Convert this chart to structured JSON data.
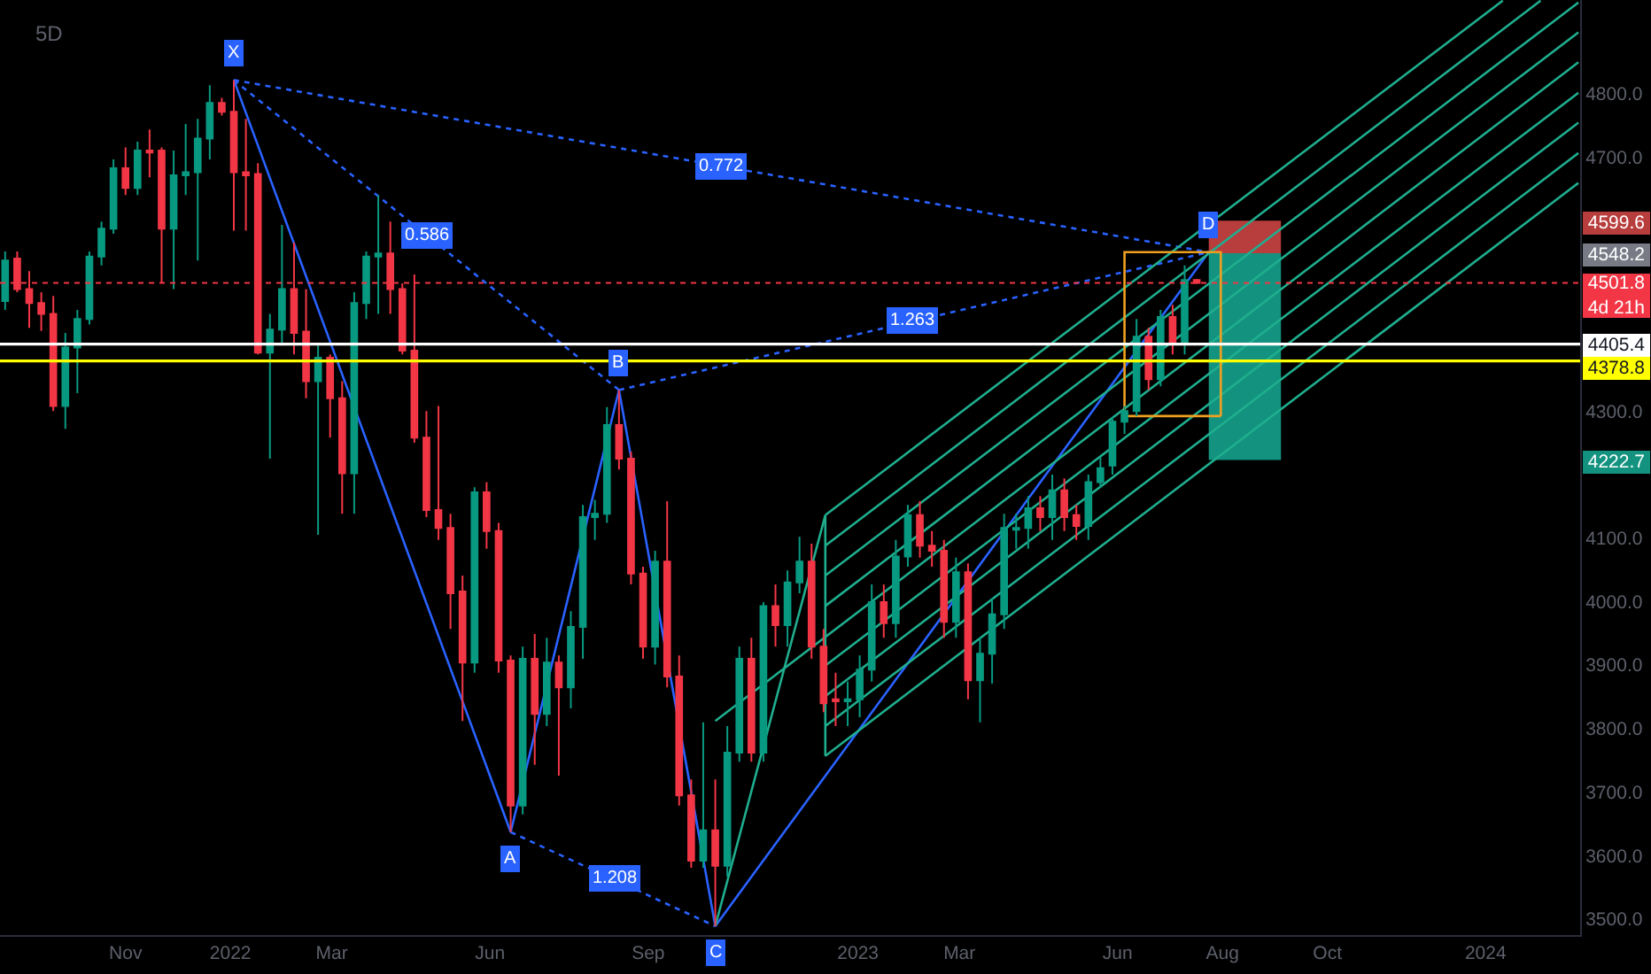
{
  "chart_data": {
    "type": "candlestick",
    "title": "5D",
    "x": [
      "2021-08-23",
      "2021-08-30",
      "2021-09-06",
      "2021-09-13",
      "2021-09-20",
      "2021-09-27",
      "2021-10-04",
      "2021-10-11",
      "2021-10-18",
      "2021-10-25",
      "2021-11-01",
      "2021-11-08",
      "2021-11-15",
      "2021-11-22",
      "2021-11-29",
      "2021-12-06",
      "2021-12-13",
      "2021-12-20",
      "2021-12-27",
      "2022-01-03",
      "2022-01-10",
      "2022-01-17",
      "2022-01-24",
      "2022-01-31",
      "2022-02-07",
      "2022-02-14",
      "2022-02-21",
      "2022-02-28",
      "2022-03-07",
      "2022-03-14",
      "2022-03-21",
      "2022-03-28",
      "2022-04-04",
      "2022-04-11",
      "2022-04-18",
      "2022-04-25",
      "2022-05-02",
      "2022-05-09",
      "2022-05-16",
      "2022-05-23",
      "2022-05-30",
      "2022-06-06",
      "2022-06-13",
      "2022-06-20",
      "2022-06-27",
      "2022-07-04",
      "2022-07-11",
      "2022-07-18",
      "2022-07-25",
      "2022-08-01",
      "2022-08-08",
      "2022-08-15",
      "2022-08-22",
      "2022-08-29",
      "2022-09-05",
      "2022-09-12",
      "2022-09-19",
      "2022-09-26",
      "2022-10-03",
      "2022-10-10",
      "2022-10-17",
      "2022-10-24",
      "2022-10-31",
      "2022-11-07",
      "2022-11-14",
      "2022-11-21",
      "2022-11-28",
      "2022-12-05",
      "2022-12-12",
      "2022-12-19",
      "2022-12-26",
      "2023-01-02",
      "2023-01-09",
      "2023-01-16",
      "2023-01-23",
      "2023-01-30",
      "2023-02-06",
      "2023-02-13",
      "2023-02-20",
      "2023-02-27",
      "2023-03-06",
      "2023-03-13",
      "2023-03-20",
      "2023-03-27",
      "2023-04-03",
      "2023-04-10",
      "2023-04-17",
      "2023-04-24",
      "2023-05-01",
      "2023-05-08",
      "2023-05-15",
      "2023-05-22",
      "2023-05-29",
      "2023-06-05",
      "2023-06-12",
      "2023-06-19",
      "2023-06-26",
      "2023-07-03",
      "2023-07-10",
      "2023-07-17"
    ],
    "ohlc": [
      [
        4473,
        4551,
        4459,
        4537
      ],
      [
        4540,
        4551,
        4487,
        4492
      ],
      [
        4492,
        4520,
        4431,
        4470
      ],
      [
        4470,
        4487,
        4426,
        4453
      ],
      [
        4453,
        4481,
        4300,
        4308
      ],
      [
        4308,
        4423,
        4272,
        4400
      ],
      [
        4400,
        4459,
        4328,
        4445
      ],
      [
        4445,
        4551,
        4436,
        4543
      ],
      [
        4543,
        4598,
        4529,
        4587
      ],
      [
        4587,
        4696,
        4579,
        4682
      ],
      [
        4682,
        4715,
        4640,
        4651
      ],
      [
        4651,
        4724,
        4640,
        4710
      ],
      [
        4710,
        4743,
        4668,
        4707
      ],
      [
        4710,
        4715,
        4501,
        4587
      ],
      [
        4587,
        4710,
        4492,
        4671
      ],
      [
        4671,
        4752,
        4640,
        4676
      ],
      [
        4676,
        4760,
        4537,
        4729
      ],
      [
        4729,
        4813,
        4696,
        4785
      ],
      [
        4785,
        4793,
        4765,
        4771
      ],
      [
        4771,
        4821,
        4584,
        4676
      ],
      [
        4676,
        4760,
        4584,
        4671
      ],
      [
        4673,
        4690,
        4389,
        4392
      ],
      [
        4392,
        4453,
        4225,
        4428
      ],
      [
        4428,
        4593,
        4403,
        4492
      ],
      [
        4492,
        4565,
        4389,
        4423
      ],
      [
        4425,
        4492,
        4320,
        4347
      ],
      [
        4347,
        4403,
        4105,
        4384
      ],
      [
        4384,
        4389,
        4258,
        4320
      ],
      [
        4320,
        4347,
        4138,
        4202
      ],
      [
        4202,
        4487,
        4138,
        4470
      ],
      [
        4470,
        4551,
        4445,
        4543
      ],
      [
        4543,
        4640,
        4453,
        4548
      ],
      [
        4548,
        4598,
        4453,
        4492
      ],
      [
        4492,
        4501,
        4389,
        4395
      ],
      [
        4395,
        4515,
        4250,
        4258
      ],
      [
        4258,
        4300,
        4133,
        4144
      ],
      [
        4144,
        4308,
        4097,
        4116
      ],
      [
        4116,
        4138,
        3957,
        4013
      ],
      [
        4016,
        4041,
        3812,
        3904
      ],
      [
        3904,
        4180,
        3888,
        4172
      ],
      [
        4172,
        4188,
        4083,
        4111
      ],
      [
        4111,
        4124,
        3888,
        3907
      ],
      [
        3907,
        3915,
        3637,
        3679
      ],
      [
        3679,
        3929,
        3665,
        3910
      ],
      [
        3910,
        3949,
        3743,
        3823
      ],
      [
        3823,
        3943,
        3804,
        3904
      ],
      [
        3904,
        3915,
        3726,
        3865
      ],
      [
        3865,
        3985,
        3832,
        3960
      ],
      [
        3960,
        4152,
        3910,
        4133
      ],
      [
        4133,
        4160,
        4097,
        4138
      ],
      [
        4138,
        4306,
        4124,
        4278
      ],
      [
        4278,
        4333,
        4208,
        4225
      ],
      [
        4225,
        4236,
        4027,
        4044
      ],
      [
        4044,
        4055,
        3910,
        3929
      ],
      [
        3929,
        4080,
        3901,
        4063
      ],
      [
        4063,
        4158,
        3865,
        3882
      ],
      [
        3882,
        3915,
        3679,
        3695
      ],
      [
        3695,
        3720,
        3581,
        3592
      ],
      [
        3592,
        3810,
        3581,
        3640
      ],
      [
        3640,
        3720,
        3489,
        3584
      ],
      [
        3584,
        3804,
        3567,
        3762
      ],
      [
        3762,
        3929,
        3748,
        3910
      ],
      [
        3910,
        3943,
        3748,
        3762
      ],
      [
        3762,
        3999,
        3748,
        3993
      ],
      [
        3993,
        4027,
        3929,
        3963
      ],
      [
        3963,
        4049,
        3929,
        4030
      ],
      [
        4030,
        4102,
        4013,
        4063
      ],
      [
        4063,
        4091,
        3910,
        3929
      ],
      [
        3929,
        3957,
        3826,
        3840
      ],
      [
        3846,
        3888,
        3804,
        3843
      ],
      [
        3843,
        3874,
        3804,
        3846
      ],
      [
        3846,
        3915,
        3818,
        3893
      ],
      [
        3893,
        4027,
        3874,
        3999
      ],
      [
        3999,
        4027,
        3943,
        3966
      ],
      [
        3966,
        4097,
        3943,
        4071
      ],
      [
        4071,
        4152,
        4055,
        4136
      ],
      [
        4136,
        4158,
        4069,
        4088
      ],
      [
        4088,
        4111,
        4055,
        4080
      ],
      [
        4080,
        4097,
        3943,
        3968
      ],
      [
        3968,
        4069,
        3943,
        4046
      ],
      [
        4046,
        4060,
        3846,
        3876
      ],
      [
        3876,
        3943,
        3810,
        3918
      ],
      [
        3918,
        4005,
        3871,
        3980
      ],
      [
        3980,
        4138,
        3957,
        4116
      ],
      [
        4113,
        4138,
        4083,
        4116
      ],
      [
        4116,
        4166,
        4083,
        4147
      ],
      [
        4147,
        4166,
        4111,
        4133
      ],
      [
        4133,
        4200,
        4097,
        4175
      ],
      [
        4175,
        4194,
        4111,
        4133
      ],
      [
        4136,
        4152,
        4097,
        4119
      ],
      [
        4119,
        4200,
        4097,
        4188
      ],
      [
        4188,
        4228,
        4180,
        4210
      ],
      [
        4214,
        4290,
        4200,
        4283
      ],
      [
        4283,
        4308,
        4264,
        4300
      ],
      [
        4300,
        4445,
        4292,
        4417
      ],
      [
        4417,
        4431,
        4333,
        4350
      ],
      [
        4350,
        4459,
        4339,
        4448
      ],
      [
        4448,
        4467,
        4389,
        4406
      ],
      [
        4406,
        4529,
        4389,
        4506
      ],
      [
        4506,
        4508,
        4500,
        4501.8
      ]
    ],
    "colors": [
      "#089981",
      "#f23645",
      "#f23645",
      "#f23645",
      "#f23645",
      "#089981",
      "#089981",
      "#089981",
      "#089981",
      "#089981",
      "#f23645",
      "#089981",
      "#f23645",
      "#f23645",
      "#089981",
      "#089981",
      "#089981",
      "#089981",
      "#f23645",
      "#f23645",
      "#f23645",
      "#f23645",
      "#089981",
      "#089981",
      "#f23645",
      "#f23645",
      "#089981",
      "#f23645",
      "#f23645",
      "#089981",
      "#089981",
      "#089981",
      "#f23645",
      "#f23645",
      "#f23645",
      "#f23645",
      "#f23645",
      "#f23645",
      "#f23645",
      "#089981",
      "#f23645",
      "#f23645",
      "#f23645",
      "#089981",
      "#f23645",
      "#089981",
      "#f23645",
      "#089981",
      "#089981",
      "#089981",
      "#089981",
      "#f23645",
      "#f23645",
      "#f23645",
      "#089981",
      "#f23645",
      "#f23645",
      "#f23645",
      "#089981",
      "#f23645",
      "#089981",
      "#089981",
      "#f23645",
      "#089981",
      "#f23645",
      "#089981",
      "#089981",
      "#f23645",
      "#f23645",
      "#f23645",
      "#089981",
      "#089981",
      "#089981",
      "#f23645",
      "#089981",
      "#089981",
      "#f23645",
      "#f23645",
      "#f23645",
      "#089981",
      "#f23645",
      "#089981",
      "#089981",
      "#089981",
      "#089981",
      "#089981",
      "#f23645",
      "#089981",
      "#f23645",
      "#f23645",
      "#089981",
      "#089981",
      "#089981",
      "#089981",
      "#089981",
      "#f23645",
      "#089981",
      "#f23645",
      "#089981",
      "#f23645"
    ],
    "series": [
      {
        "type": "line",
        "color": "#2962ff",
        "x": [
          "2022-01-03",
          "2022-06-13",
          "2022-08-15",
          "2022-10-10",
          "2023-07-24"
        ],
        "values": [
          4821,
          3637,
          4333,
          3489,
          4550
        ]
      },
      {
        "type": "line",
        "color": "#2962ff",
        "line_style": "dotted",
        "x": [
          "2022-01-03",
          "2022-08-15"
        ],
        "values": [
          4821,
          4333
        ]
      },
      {
        "type": "line",
        "color": "#2962ff",
        "line_style": "dotted",
        "x": [
          "2022-06-13",
          "2022-10-10"
        ],
        "values": [
          3637,
          3489
        ]
      },
      {
        "type": "line",
        "color": "#2962ff",
        "line_style": "dotted",
        "x": [
          "2022-08-15",
          "2023-07-24"
        ],
        "values": [
          4333,
          4550
        ]
      },
      {
        "type": "line",
        "color": "#2962ff",
        "line_style": "dotted",
        "x": [
          "2022-01-03",
          "2023-07-24"
        ],
        "values": [
          4821,
          4550
        ]
      },
      {
        "type": "line",
        "color": "#1fae8e",
        "x": [
          "2022-12-13",
          "2024-01-11"
        ],
        "values": [
          4136,
          4946
        ]
      },
      {
        "type": "line",
        "color": "#1fae8e",
        "x": [
          "2022-12-13",
          "2024-02-02"
        ],
        "values": [
          4088,
          4946
        ]
      },
      {
        "type": "line",
        "color": "#1fae8e",
        "x": [
          "2022-12-13",
          "2024-02-24"
        ],
        "values": [
          4041,
          4943
        ]
      },
      {
        "type": "line",
        "color": "#1fae8e",
        "x": [
          "2022-12-13",
          "2024-02-24"
        ],
        "values": [
          3993,
          4896
        ]
      },
      {
        "type": "line",
        "color": "#1fae8e",
        "x": [
          "2022-10-10",
          "2024-02-24"
        ],
        "values": [
          3812,
          4849
        ]
      },
      {
        "type": "line",
        "color": "#1fae8e",
        "x": [
          "2022-12-13",
          "2024-02-24"
        ],
        "values": [
          3899,
          4801
        ]
      },
      {
        "type": "line",
        "color": "#1fae8e",
        "x": [
          "2022-12-13",
          "2024-02-24"
        ],
        "values": [
          3851,
          4754
        ]
      },
      {
        "type": "line",
        "color": "#1fae8e",
        "x": [
          "2022-12-13",
          "2024-02-24"
        ],
        "values": [
          3804,
          4706
        ]
      },
      {
        "type": "line",
        "color": "#1fae8e",
        "x": [
          "2022-12-13",
          "2024-02-24"
        ],
        "values": [
          3757,
          4659
        ]
      },
      {
        "type": "line",
        "color": "#1fae8e",
        "x": [
          "2022-12-13",
          "2022-12-13"
        ],
        "values": [
          4136,
          3757
        ]
      },
      {
        "type": "line",
        "color": "#1fae8e",
        "x": [
          "2022-10-10",
          "2022-12-13"
        ],
        "values": [
          3489,
          4136
        ]
      },
      {
        "type": "line",
        "color": "#f0a020",
        "x": [
          "2023-06-05",
          "2023-06-05",
          "2023-07-31",
          "2023-07-31"
        ],
        "values": [
          4292,
          4550,
          4550,
          4292
        ]
      },
      {
        "type": "line",
        "color": "#f0a020",
        "x": [
          "2023-06-05",
          "2023-07-31"
        ],
        "values": [
          4292,
          4292
        ]
      },
      {
        "type": "bar",
        "color": "#b83d3d",
        "x": [
          "2023-08-14"
        ],
        "base": [
          4548.2
        ],
        "values": [
          51.4
        ]
      },
      {
        "type": "bar",
        "color": "#13937f",
        "x": [
          "2023-08-14"
        ],
        "base": [
          4222.7
        ],
        "values": [
          325.5
        ]
      }
    ],
    "ref_lines": [
      {
        "axis": "y",
        "value": 4501.8,
        "label": "4501.8\n4d 21h",
        "color": "#f23645",
        "line_style": "dotted"
      },
      {
        "axis": "y",
        "value": 4405.4,
        "label": "4405.4",
        "color": "#ffffff"
      },
      {
        "axis": "y",
        "value": 4378.8,
        "label": "4378.8",
        "color": "#ffff00"
      }
    ],
    "annotations": [
      {
        "text": "X",
        "x": "2022-01-03",
        "y": 4821
      },
      {
        "text": "A",
        "x": "2022-06-13",
        "y": 3637
      },
      {
        "text": "B",
        "x": "2022-08-15",
        "y": 4333
      },
      {
        "text": "C",
        "x": "2022-10-10",
        "y": 3489
      },
      {
        "text": "D",
        "x": "2023-07-24",
        "y": 4550
      },
      {
        "text": "0.586",
        "x": "2022-04-25",
        "y": 4577
      },
      {
        "text": "1.208",
        "x": "2022-08-12",
        "y": 3563
      },
      {
        "text": "1.263",
        "x": "2023-02-02",
        "y": 4442
      },
      {
        "text": "0.772",
        "x": "2022-10-13",
        "y": 4686
      },
      {
        "text": "4599.6",
        "y": 4599.6
      },
      {
        "text": "4548.2",
        "y": 4548.2
      },
      {
        "text": "4222.7",
        "y": 4222.7
      }
    ],
    "xlim": [
      "2021-08-20",
      "2024-02-25"
    ],
    "xticks": [
      {
        "value": "2021-11-01",
        "label": "Nov"
      },
      {
        "value": "2022-01-01",
        "label": "2022"
      },
      {
        "value": "2022-03-01",
        "label": "Mar"
      },
      {
        "value": "2022-06-01",
        "label": "Jun"
      },
      {
        "value": "2022-09-01",
        "label": "Sep"
      },
      {
        "value": "2023-01-01",
        "label": "2023"
      },
      {
        "value": "2023-03-01",
        "label": "Mar"
      },
      {
        "value": "2023-06-01",
        "label": "Jun"
      },
      {
        "value": "2023-08-01",
        "label": "Aug"
      },
      {
        "value": "2023-10-01",
        "label": "Oct"
      },
      {
        "value": "2024-01-01",
        "label": "2024"
      }
    ],
    "ylim": [
      3475,
      4947
    ],
    "yticks": [
      {
        "value": 3500,
        "label": "3500.0"
      },
      {
        "value": 3600,
        "label": "3600.0"
      },
      {
        "value": 3700,
        "label": "3700.0"
      },
      {
        "value": 3800,
        "label": "3800.0"
      },
      {
        "value": 3900,
        "label": "3900.0"
      },
      {
        "value": 4000,
        "label": "4000.0"
      },
      {
        "value": 4100,
        "label": "4100.0"
      },
      {
        "value": 4300,
        "label": "4300.0"
      },
      {
        "value": 4700,
        "label": "4700.0"
      },
      {
        "value": 4800,
        "label": "4800.0"
      }
    ]
  }
}
